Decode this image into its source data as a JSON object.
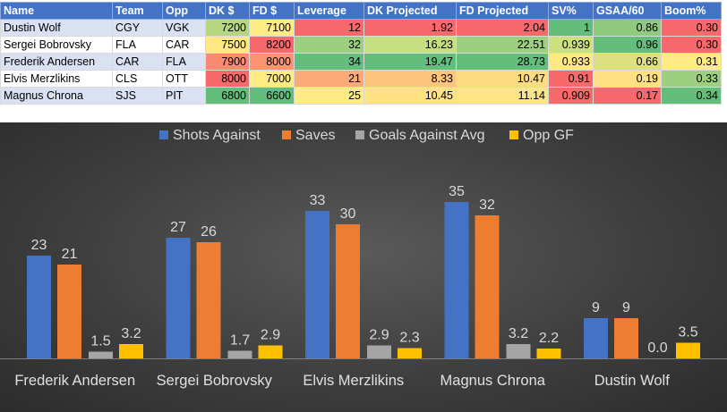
{
  "table": {
    "headers": [
      "Name",
      "Team",
      "Opp",
      "DK $",
      "FD $",
      "Leverage",
      "DK Projected",
      "FD Projected",
      "SV%",
      "GSAA/60",
      "Boom%"
    ],
    "rows": [
      [
        "Dustin Wolf",
        "CGY",
        "VGK",
        "7200",
        "7100",
        "12",
        "1.92",
        "2.04",
        "1",
        "0.86",
        "0.30"
      ],
      [
        "Sergei Bobrovsky",
        "FLA",
        "CAR",
        "7500",
        "8200",
        "32",
        "16.23",
        "22.51",
        "0.939",
        "0.96",
        "0.30"
      ],
      [
        "Frederik Andersen",
        "CAR",
        "FLA",
        "7900",
        "8000",
        "34",
        "19.47",
        "28.73",
        "0.933",
        "0.66",
        "0.31"
      ],
      [
        "Elvis Merzlikins",
        "CLS",
        "OTT",
        "8000",
        "7000",
        "21",
        "8.33",
        "10.47",
        "0.91",
        "0.19",
        "0.33"
      ],
      [
        "Magnus Chrona",
        "SJS",
        "PIT",
        "6800",
        "6600",
        "25",
        "10.45",
        "11.14",
        "0.909",
        "0.17",
        "0.34"
      ]
    ],
    "cell_colors": [
      [
        null,
        null,
        null,
        "#b5d67e",
        "#ffeb84",
        "#f8696b",
        "#f8696b",
        "#f8696b",
        "#63be7b",
        "#8fca7e",
        "#f8696b"
      ],
      [
        null,
        null,
        null,
        "#ffe783",
        "#f8696b",
        "#9ccf7f",
        "#c6df81",
        "#9ccf7f",
        "#cbe07f",
        "#63be7b",
        "#f8696b"
      ],
      [
        null,
        null,
        null,
        "#fa8a72",
        "#fa9473",
        "#63be7b",
        "#63be7b",
        "#63be7b",
        "#ffe984",
        "#dce082",
        "#ffeb84"
      ],
      [
        null,
        null,
        null,
        "#f8696b",
        "#ffeb84",
        "#fcaa77",
        "#fdc47d",
        "#fedb81",
        "#f8696b",
        "#ffe082",
        "#9ccf7f"
      ],
      [
        null,
        null,
        null,
        "#63be7b",
        "#63be7b",
        "#ffeb84",
        "#ffe383",
        "#ffe583",
        "#f8696b",
        "#f8696b",
        "#63be7b"
      ]
    ]
  },
  "chart_data": {
    "type": "bar",
    "categories": [
      "Frederik Andersen",
      "Sergei Bobrovsky",
      "Elvis Merzlikins",
      "Magnus Chrona",
      "Dustin Wolf"
    ],
    "series": [
      {
        "name": "Shots Against",
        "color": "#4472c4",
        "values": [
          23,
          27,
          33,
          35,
          9
        ],
        "labels": [
          "23",
          "27",
          "33",
          "35",
          "9"
        ]
      },
      {
        "name": "Saves",
        "color": "#ed7d31",
        "values": [
          21,
          26,
          30,
          32,
          9
        ],
        "labels": [
          "21",
          "26",
          "30",
          "32",
          "9"
        ]
      },
      {
        "name": "Goals Against Avg",
        "color": "#a5a5a5",
        "values": [
          1.5,
          1.7,
          2.9,
          3.2,
          0.0
        ],
        "labels": [
          "1.5",
          "1.7",
          "2.9",
          "3.2",
          "0.0"
        ]
      },
      {
        "name": "Opp GF",
        "color": "#ffc000",
        "values": [
          3.2,
          2.9,
          2.3,
          2.2,
          3.5
        ],
        "labels": [
          "3.2",
          "2.9",
          "2.3",
          "2.2",
          "3.5"
        ]
      }
    ],
    "title": "",
    "xlabel": "",
    "ylabel": "",
    "ylim": [
      0,
      40
    ],
    "grid": false,
    "legend": "top"
  }
}
